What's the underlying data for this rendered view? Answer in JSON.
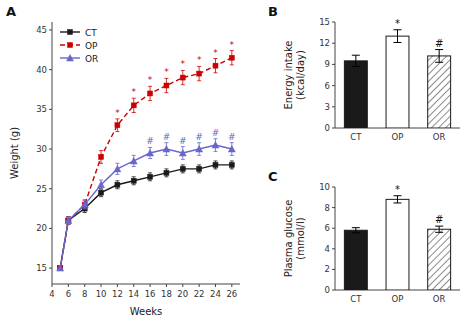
{
  "chart_data": [
    {
      "type": "line",
      "title": "A",
      "xlabel": "Weeks",
      "ylabel": "Weight (g)",
      "x": [
        5,
        6,
        8,
        10,
        12,
        14,
        16,
        18,
        20,
        22,
        24,
        26
      ],
      "xlim": [
        4,
        27
      ],
      "xticks": [
        4,
        6,
        8,
        10,
        12,
        14,
        16,
        18,
        20,
        22,
        24,
        26
      ],
      "ylim": [
        13,
        46
      ],
      "yticks": [
        15,
        20,
        25,
        30,
        35,
        40,
        45
      ],
      "legend": "upper left",
      "series": [
        {
          "name": "CT",
          "color": "#1a1a1a",
          "marker": "square",
          "line_style": "solid",
          "values": [
            15.0,
            21.0,
            22.5,
            24.5,
            25.5,
            26.0,
            26.5,
            27.0,
            27.5,
            27.5,
            28.0,
            28.0
          ],
          "errors": [
            0.3,
            0.5,
            0.5,
            0.5,
            0.5,
            0.5,
            0.5,
            0.5,
            0.5,
            0.5,
            0.5,
            0.5
          ]
        },
        {
          "name": "OP",
          "color": "#cc0000",
          "marker": "square",
          "line_style": "dashed",
          "values": [
            15.0,
            21.0,
            23.0,
            29.0,
            33.0,
            35.5,
            37.0,
            38.0,
            39.0,
            39.5,
            40.5,
            41.5
          ],
          "errors": [
            0.3,
            0.5,
            0.6,
            0.8,
            0.8,
            0.9,
            0.9,
            0.9,
            0.9,
            0.9,
            0.9,
            0.9
          ]
        },
        {
          "name": "OR",
          "color": "#6666cc",
          "marker": "triangle",
          "line_style": "solid",
          "values": [
            15.0,
            21.0,
            23.0,
            25.5,
            27.5,
            28.5,
            29.5,
            30.0,
            29.5,
            30.0,
            30.5,
            30.0
          ],
          "errors": [
            0.3,
            0.5,
            0.5,
            0.6,
            0.7,
            0.7,
            0.7,
            0.8,
            0.8,
            0.8,
            0.8,
            0.8
          ]
        }
      ],
      "annotations": [
        {
          "series": "OP",
          "x": 12,
          "text": "*"
        },
        {
          "series": "OP",
          "x": 14,
          "text": "*"
        },
        {
          "series": "OP",
          "x": 16,
          "text": "*"
        },
        {
          "series": "OP",
          "x": 18,
          "text": "*"
        },
        {
          "series": "OP",
          "x": 20,
          "text": "*"
        },
        {
          "series": "OP",
          "x": 22,
          "text": "*"
        },
        {
          "series": "OP",
          "x": 24,
          "text": "*"
        },
        {
          "series": "OP",
          "x": 26,
          "text": "*"
        },
        {
          "series": "OR",
          "x": 16,
          "text": "#"
        },
        {
          "series": "OR",
          "x": 18,
          "text": "#"
        },
        {
          "series": "OR",
          "x": 20,
          "text": "#"
        },
        {
          "series": "OR",
          "x": 22,
          "text": "#"
        },
        {
          "series": "OR",
          "x": 24,
          "text": "#"
        },
        {
          "series": "OR",
          "x": 26,
          "text": "#"
        }
      ]
    },
    {
      "type": "bar",
      "title": "B",
      "ylabel": "Energy intake\n(kcal/day)",
      "categories": [
        "CT",
        "OP",
        "OR"
      ],
      "values": [
        9.5,
        13.0,
        10.2
      ],
      "errors": [
        0.8,
        0.9,
        0.9
      ],
      "colors": [
        "#1a1a1a",
        "#ffffff",
        "#ffffff"
      ],
      "ylim": [
        0,
        15
      ],
      "yticks": [
        0,
        3,
        6,
        9,
        12,
        15
      ],
      "annotations": [
        {
          "category": "OP",
          "text": "*"
        },
        {
          "category": "OR",
          "text": "#"
        }
      ]
    },
    {
      "type": "bar",
      "title": "C",
      "ylabel": "Plasma glucose\n(mmol/l)",
      "categories": [
        "CT",
        "OP",
        "OR"
      ],
      "values": [
        5.8,
        8.8,
        5.9
      ],
      "errors": [
        0.25,
        0.35,
        0.3
      ],
      "colors": [
        "#1a1a1a",
        "#ffffff",
        "#ffffff"
      ],
      "ylim": [
        0,
        10
      ],
      "yticks": [
        0,
        2,
        4,
        6,
        8,
        10
      ],
      "annotations": [
        {
          "category": "OP",
          "text": "*"
        },
        {
          "category": "OR",
          "text": "#"
        }
      ]
    }
  ]
}
